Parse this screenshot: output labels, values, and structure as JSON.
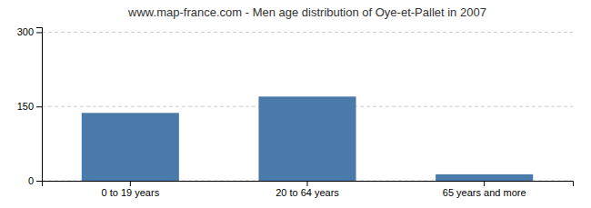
{
  "chart_data": {
    "type": "bar",
    "title": "www.map-france.com - Men age distribution of Oye-et-Pallet in 2007",
    "categories": [
      "0 to 19 years",
      "20 to 64 years",
      "65 years and more"
    ],
    "values": [
      137,
      170,
      13
    ],
    "color": "#4a7aaa",
    "ylim": [
      0,
      310
    ],
    "yticks": [
      0,
      150,
      300
    ],
    "grid": true
  }
}
